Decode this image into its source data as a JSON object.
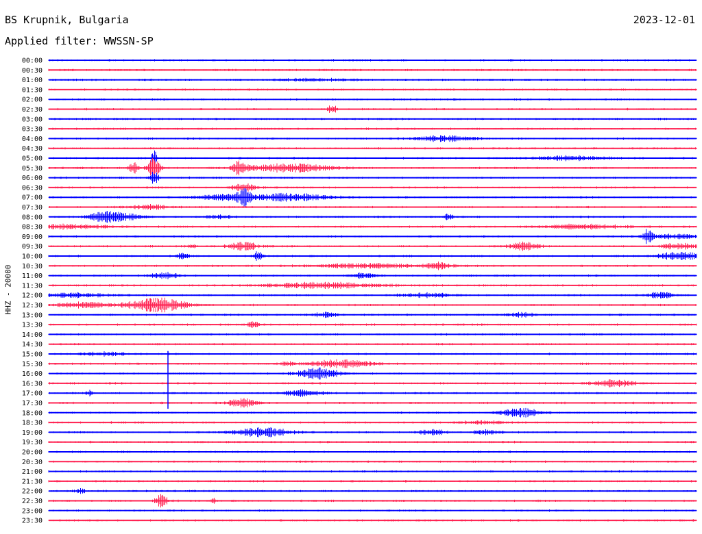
{
  "header": {
    "station": "BS Krupnik, Bulgaria",
    "date": "2023-12-01",
    "filter_label": "Applied filter: WWSSN-SP"
  },
  "chart_data": {
    "type": "line",
    "title": "BS Krupnik, Bulgaria",
    "subtitle": "Applied filter: WWSSN-SP",
    "ylabel": "HHZ - 20000",
    "xlabel": "",
    "date": "2023-12-01",
    "grid": false,
    "legend": "none",
    "colors": [
      "#0000ff",
      "#ff2050"
    ],
    "rows": [
      {
        "label": "00:00",
        "color": "#0000ff"
      },
      {
        "label": "00:30",
        "color": "#ff2050"
      },
      {
        "label": "01:00",
        "color": "#0000ff"
      },
      {
        "label": "01:30",
        "color": "#ff2050"
      },
      {
        "label": "02:00",
        "color": "#0000ff"
      },
      {
        "label": "02:30",
        "color": "#ff2050"
      },
      {
        "label": "03:00",
        "color": "#0000ff"
      },
      {
        "label": "03:30",
        "color": "#ff2050"
      },
      {
        "label": "04:00",
        "color": "#0000ff"
      },
      {
        "label": "04:30",
        "color": "#ff2050"
      },
      {
        "label": "05:00",
        "color": "#0000ff"
      },
      {
        "label": "05:30",
        "color": "#ff2050"
      },
      {
        "label": "06:00",
        "color": "#0000ff"
      },
      {
        "label": "06:30",
        "color": "#ff2050"
      },
      {
        "label": "07:00",
        "color": "#0000ff"
      },
      {
        "label": "07:30",
        "color": "#ff2050"
      },
      {
        "label": "08:00",
        "color": "#0000ff"
      },
      {
        "label": "08:30",
        "color": "#ff2050"
      },
      {
        "label": "09:00",
        "color": "#0000ff"
      },
      {
        "label": "09:30",
        "color": "#ff2050"
      },
      {
        "label": "10:00",
        "color": "#0000ff"
      },
      {
        "label": "10:30",
        "color": "#ff2050"
      },
      {
        "label": "11:00",
        "color": "#0000ff"
      },
      {
        "label": "11:30",
        "color": "#ff2050"
      },
      {
        "label": "12:00",
        "color": "#0000ff"
      },
      {
        "label": "12:30",
        "color": "#ff2050"
      },
      {
        "label": "13:00",
        "color": "#0000ff"
      },
      {
        "label": "13:30",
        "color": "#ff2050"
      },
      {
        "label": "14:00",
        "color": "#0000ff"
      },
      {
        "label": "14:30",
        "color": "#ff2050"
      },
      {
        "label": "15:00",
        "color": "#0000ff"
      },
      {
        "label": "15:30",
        "color": "#ff2050"
      },
      {
        "label": "16:00",
        "color": "#0000ff"
      },
      {
        "label": "16:30",
        "color": "#ff2050"
      },
      {
        "label": "17:00",
        "color": "#0000ff"
      },
      {
        "label": "17:30",
        "color": "#ff2050"
      },
      {
        "label": "18:00",
        "color": "#0000ff"
      },
      {
        "label": "18:30",
        "color": "#ff2050"
      },
      {
        "label": "19:00",
        "color": "#0000ff"
      },
      {
        "label": "19:30",
        "color": "#ff2050"
      },
      {
        "label": "20:00",
        "color": "#0000ff"
      },
      {
        "label": "20:30",
        "color": "#ff2050"
      },
      {
        "label": "21:00",
        "color": "#0000ff"
      },
      {
        "label": "21:30",
        "color": "#ff2050"
      },
      {
        "label": "22:00",
        "color": "#0000ff"
      },
      {
        "label": "22:30",
        "color": "#ff2050"
      },
      {
        "label": "23:00",
        "color": "#0000ff"
      },
      {
        "label": "23:30",
        "color": "#ff2050"
      }
    ]
  }
}
